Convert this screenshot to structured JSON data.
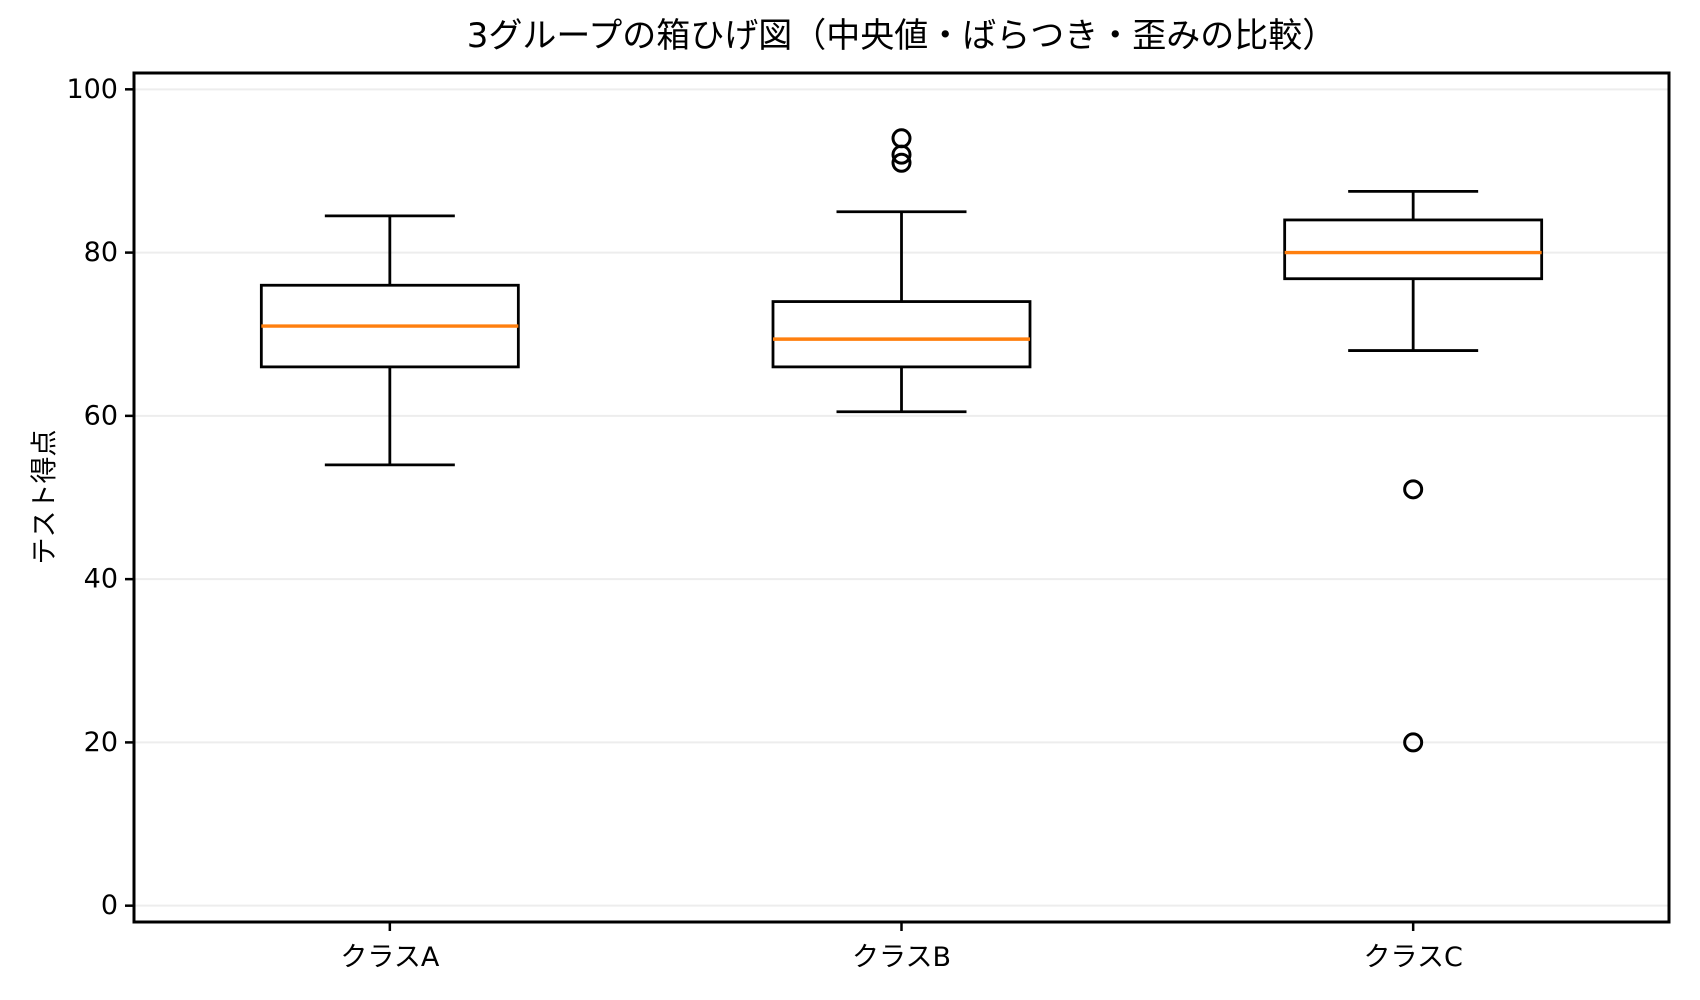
{
  "chart_data": {
    "type": "box",
    "title": "3グループの箱ひげ図（中央値・ばらつき・歪みの比較）",
    "ylabel": "テスト得点",
    "xlabel": "",
    "categories": [
      "クラスA",
      "クラスB",
      "クラスC"
    ],
    "series": [
      {
        "name": "クラスA",
        "whisker_low": 54,
        "q1": 66,
        "median": 71,
        "q3": 76,
        "whisker_high": 84.5,
        "outliers": []
      },
      {
        "name": "クラスB",
        "whisker_low": 60.5,
        "q1": 66,
        "median": 69.4,
        "q3": 74,
        "whisker_high": 85,
        "outliers": [
          94,
          92,
          91
        ]
      },
      {
        "name": "クラスC",
        "whisker_low": 68,
        "q1": 76.8,
        "median": 80,
        "q3": 84,
        "whisker_high": 87.5,
        "outliers": [
          51,
          20
        ]
      }
    ],
    "yticks": [
      0,
      20,
      40,
      60,
      80,
      100
    ],
    "ytick_labels": [
      "0",
      "20",
      "40",
      "60",
      "80",
      "100"
    ],
    "ylim": [
      -2,
      102
    ],
    "grid": "horizontal",
    "legend": "none",
    "colors": {
      "median": "#ff7f0e",
      "box_edge": "#000000",
      "whisker": "#000000",
      "outlier_edge": "#000000",
      "grid": "#ededed",
      "spine": "#000000",
      "background": "#ffffff"
    }
  }
}
